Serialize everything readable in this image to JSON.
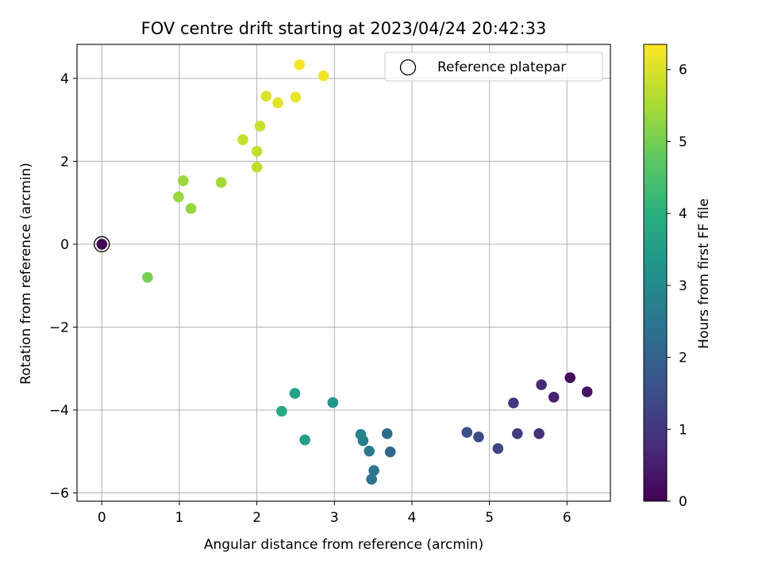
{
  "chart_data": {
    "type": "scatter",
    "title": "FOV centre drift starting at 2023/04/24 20:42:33",
    "xlabel": "Angular distance from reference (arcmin)",
    "ylabel": "Rotation from reference (arcmin)",
    "xlim": [
      -0.32,
      6.56
    ],
    "ylim": [
      -6.2,
      4.82
    ],
    "xticks": [
      0,
      1,
      2,
      3,
      4,
      5,
      6
    ],
    "yticks": [
      -6,
      -4,
      -2,
      0,
      2,
      4
    ],
    "xtick_labels": [
      "0",
      "1",
      "2",
      "3",
      "4",
      "5",
      "6"
    ],
    "ytick_labels": [
      "−6",
      "−4",
      "−2",
      "0",
      "2",
      "4"
    ],
    "grid": true,
    "legend": {
      "position": "top-right",
      "entries": [
        {
          "label": "Reference platepar",
          "marker": "open-circle"
        }
      ]
    },
    "colorbar": {
      "label": "Hours from first FF file",
      "colormap": "viridis",
      "range": [
        0,
        6.35
      ],
      "ticks": [
        0,
        1,
        2,
        3,
        4,
        5,
        6
      ],
      "tick_labels": [
        "0",
        "1",
        "2",
        "3",
        "4",
        "5",
        "6"
      ]
    },
    "reference_point": {
      "x": 0,
      "y": 0
    },
    "points": [
      {
        "x": 0.0,
        "y": 0.0,
        "hours": 0.0
      },
      {
        "x": 6.04,
        "y": -3.22,
        "hours": 0.2
      },
      {
        "x": 6.26,
        "y": -3.56,
        "hours": 0.35
      },
      {
        "x": 5.83,
        "y": -3.69,
        "hours": 0.6
      },
      {
        "x": 5.67,
        "y": -3.39,
        "hours": 0.75
      },
      {
        "x": 5.64,
        "y": -4.57,
        "hours": 0.9
      },
      {
        "x": 5.31,
        "y": -3.83,
        "hours": 1.0
      },
      {
        "x": 5.36,
        "y": -4.57,
        "hours": 1.15
      },
      {
        "x": 5.11,
        "y": -4.93,
        "hours": 1.3
      },
      {
        "x": 4.86,
        "y": -4.65,
        "hours": 1.45
      },
      {
        "x": 4.71,
        "y": -4.54,
        "hours": 1.55
      },
      {
        "x": 3.72,
        "y": -5.01,
        "hours": 2.1
      },
      {
        "x": 3.68,
        "y": -4.57,
        "hours": 2.2
      },
      {
        "x": 3.48,
        "y": -5.67,
        "hours": 2.4
      },
      {
        "x": 3.51,
        "y": -5.46,
        "hours": 2.5
      },
      {
        "x": 3.45,
        "y": -4.99,
        "hours": 2.6
      },
      {
        "x": 3.37,
        "y": -4.74,
        "hours": 2.75
      },
      {
        "x": 3.34,
        "y": -4.59,
        "hours": 2.85
      },
      {
        "x": 2.98,
        "y": -3.82,
        "hours": 3.3
      },
      {
        "x": 2.62,
        "y": -4.72,
        "hours": 3.5
      },
      {
        "x": 2.49,
        "y": -3.6,
        "hours": 3.65
      },
      {
        "x": 2.32,
        "y": -4.03,
        "hours": 3.8
      },
      {
        "x": 0.59,
        "y": -0.8,
        "hours": 5.0
      },
      {
        "x": 1.15,
        "y": 0.86,
        "hours": 5.3
      },
      {
        "x": 0.99,
        "y": 1.14,
        "hours": 5.35
      },
      {
        "x": 1.05,
        "y": 1.53,
        "hours": 5.4
      },
      {
        "x": 1.54,
        "y": 1.49,
        "hours": 5.45
      },
      {
        "x": 2.0,
        "y": 1.86,
        "hours": 5.7
      },
      {
        "x": 2.0,
        "y": 2.24,
        "hours": 5.75
      },
      {
        "x": 1.82,
        "y": 2.52,
        "hours": 5.8
      },
      {
        "x": 2.04,
        "y": 2.85,
        "hours": 5.85
      },
      {
        "x": 2.12,
        "y": 3.57,
        "hours": 6.0
      },
      {
        "x": 2.27,
        "y": 3.41,
        "hours": 6.05
      },
      {
        "x": 2.5,
        "y": 3.55,
        "hours": 6.1
      },
      {
        "x": 2.86,
        "y": 4.06,
        "hours": 6.2
      },
      {
        "x": 2.55,
        "y": 4.33,
        "hours": 6.3
      }
    ]
  }
}
